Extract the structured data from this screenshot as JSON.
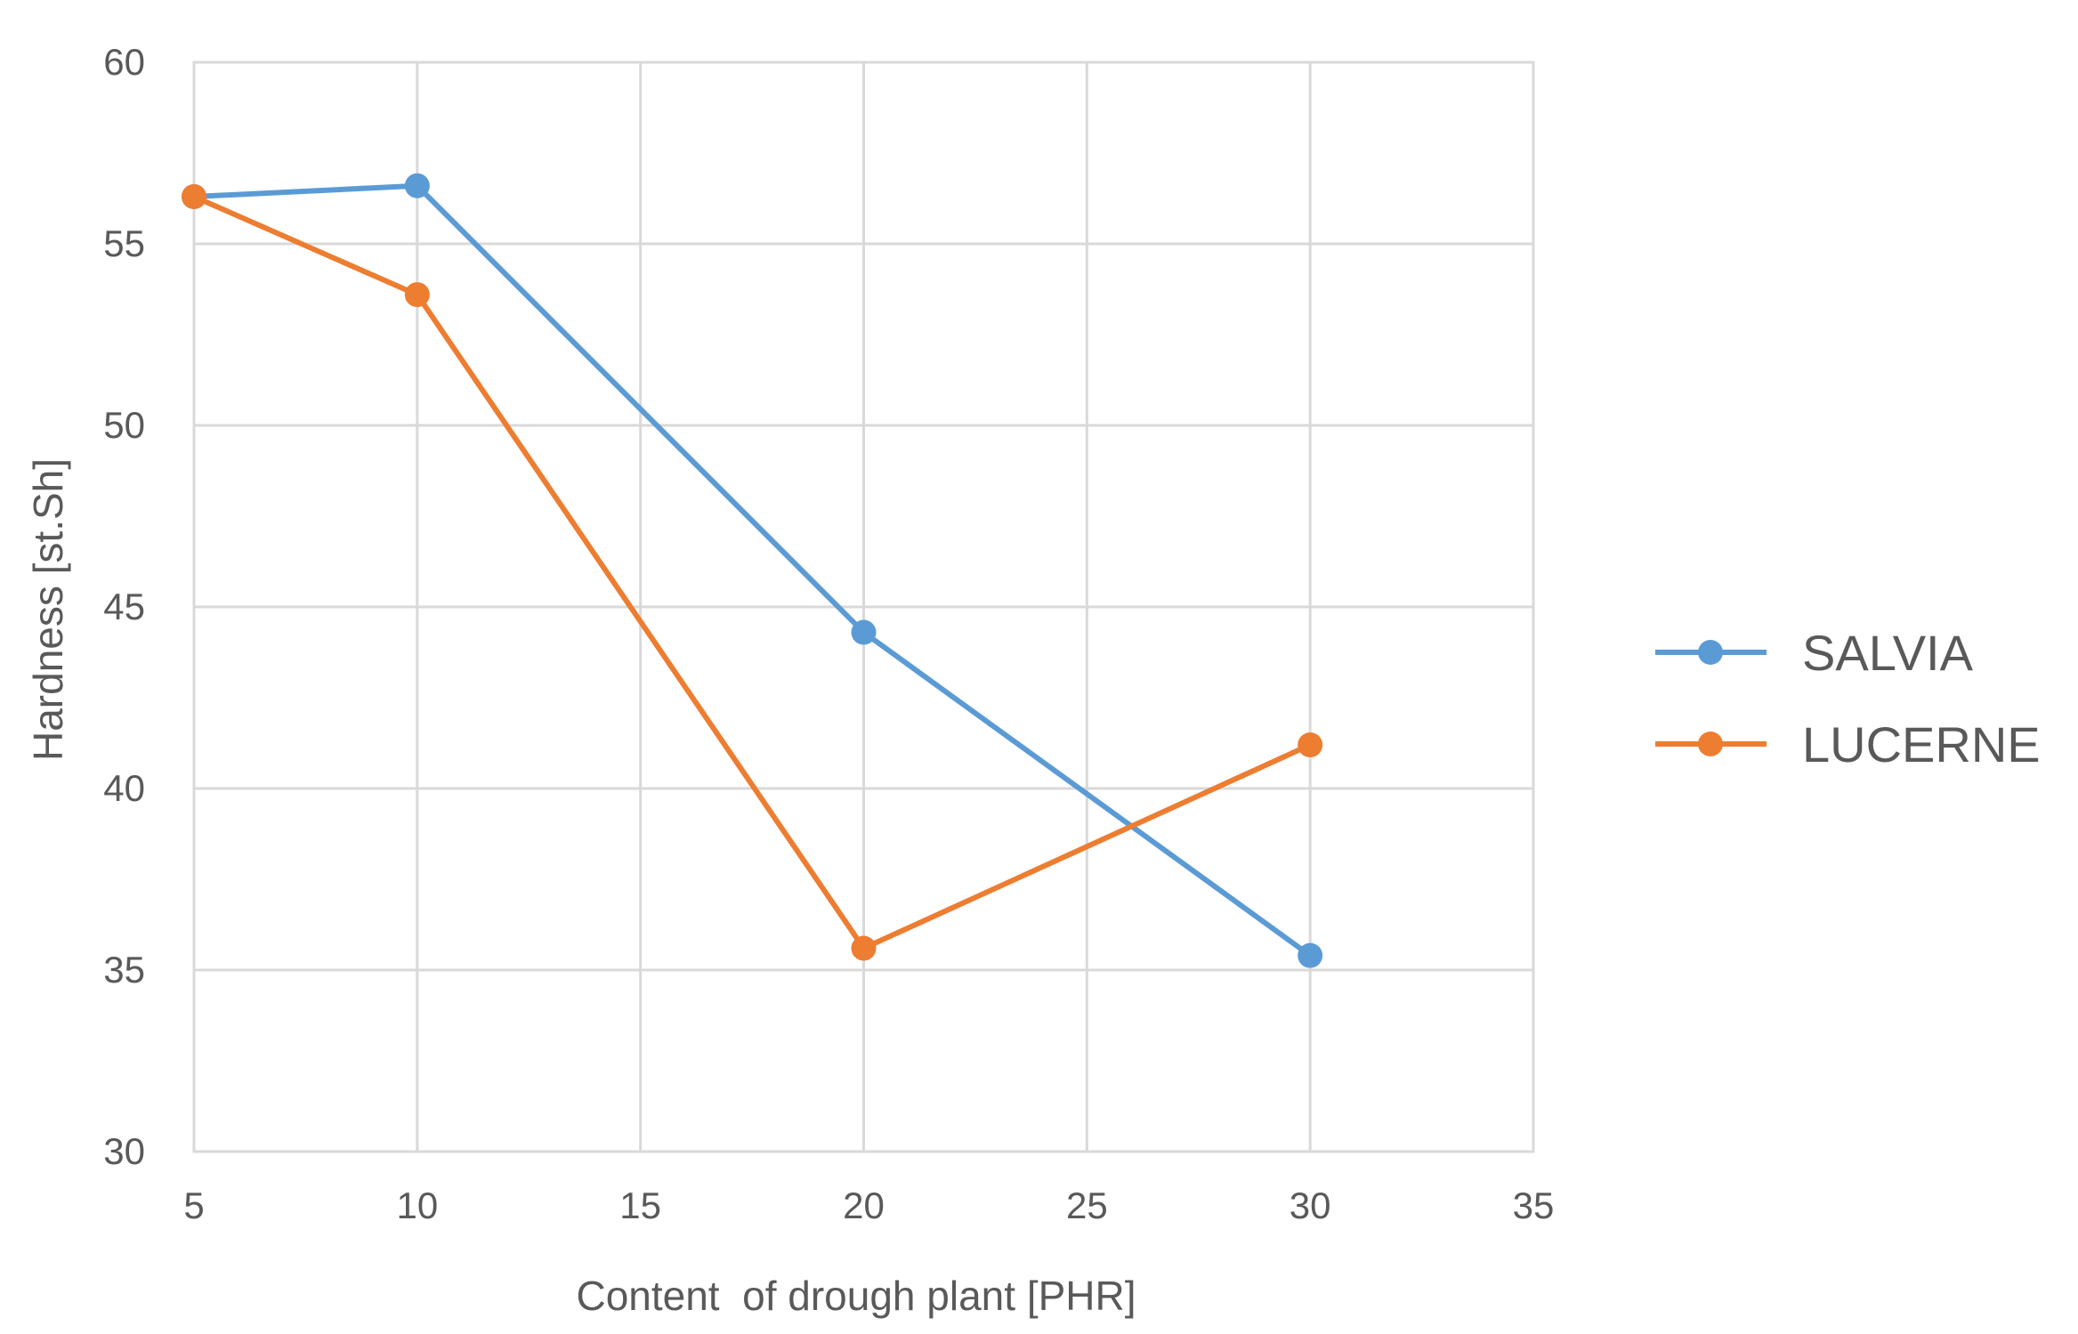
{
  "chart_data": {
    "type": "line",
    "title": "",
    "xlabel": "Content  of drough plant [PHR]",
    "ylabel": "Hardness [st.Sh]",
    "xlim": [
      5,
      35
    ],
    "ylim": [
      30,
      60
    ],
    "xticks": [
      5,
      10,
      15,
      20,
      25,
      30,
      35
    ],
    "yticks": [
      30,
      35,
      40,
      45,
      50,
      55,
      60
    ],
    "grid": true,
    "legend_position": "right",
    "series": [
      {
        "name": "SALVIA",
        "color": "#5b9bd5",
        "x": [
          5,
          10,
          20,
          30
        ],
        "y": [
          56.3,
          56.6,
          44.3,
          35.4
        ]
      },
      {
        "name": "LUCERNE",
        "color": "#ed7d31",
        "x": [
          5,
          10,
          20,
          30
        ],
        "y": [
          56.3,
          53.6,
          35.6,
          41.2
        ]
      }
    ]
  }
}
